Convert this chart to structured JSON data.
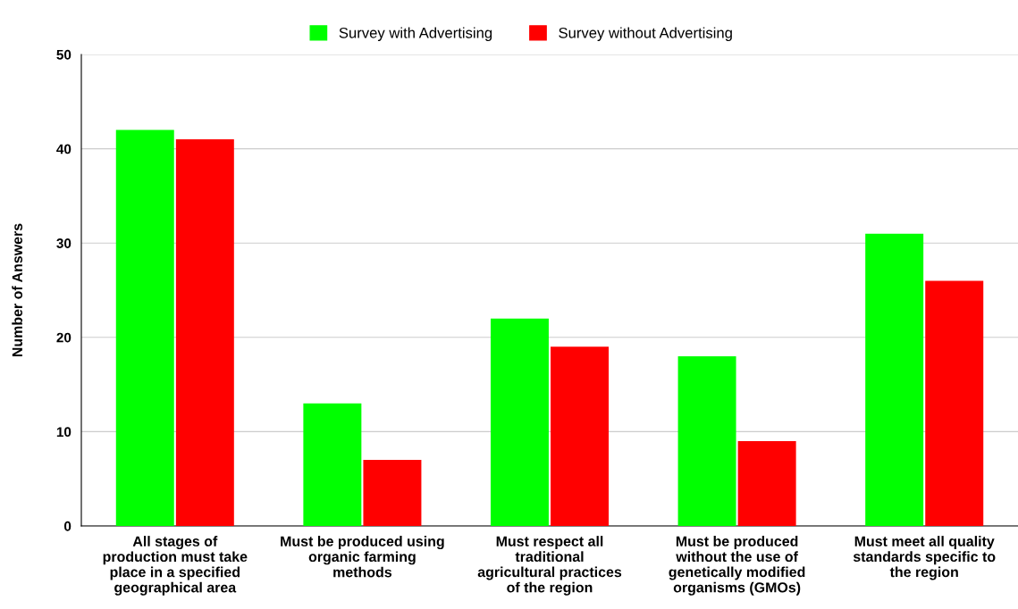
{
  "chart_data": {
    "type": "bar",
    "ylabel": "Number of Answers",
    "categories": [
      "All stages of production must take place in a specified geographical area",
      "Must be produced using organic farming methods",
      "Must respect all traditional agricultural practices of the region",
      "Must be produced without the use of genetically modified organisms (GMOs)",
      "Must meet all quality standards specific to the region"
    ],
    "series": [
      {
        "name": "Survey with Advertising",
        "color": "#00ff00",
        "values": [
          42,
          13,
          22,
          18,
          31
        ]
      },
      {
        "name": "Survey without Advertising",
        "color": "#ff0000",
        "values": [
          41,
          7,
          19,
          9,
          26
        ]
      }
    ],
    "ylim": [
      0,
      50
    ],
    "yticks": [
      0,
      10,
      20,
      30,
      40,
      50
    ],
    "grid": "y",
    "legend": "top"
  }
}
